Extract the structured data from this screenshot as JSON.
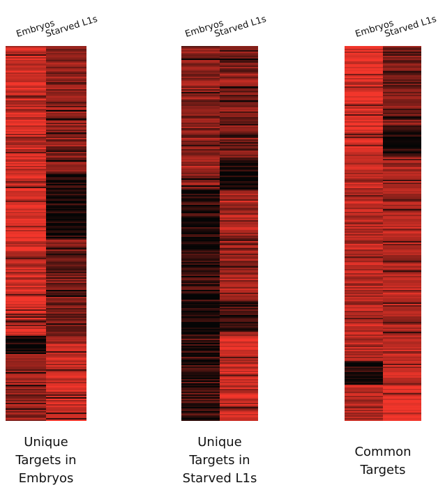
{
  "chart_data": [
    {
      "type": "heatmap",
      "title": "Unique\nTargets in\nEmbryos",
      "columns": [
        "Embryos",
        "Starved L1s"
      ],
      "color_scale": {
        "low": "#050505",
        "high": "#f2362b"
      },
      "segments": [
        {
          "from": 0.0,
          "to": 0.34,
          "Embryos": 0.85,
          "Starved L1s": 0.55
        },
        {
          "from": 0.34,
          "to": 0.51,
          "Embryos": 0.95,
          "Starved L1s": 0.08
        },
        {
          "from": 0.51,
          "to": 0.77,
          "Embryos": 0.85,
          "Starved L1s": 0.45
        },
        {
          "from": 0.77,
          "to": 0.82,
          "Embryos": 0.08,
          "Starved L1s": 0.75
        },
        {
          "from": 0.82,
          "to": 1.0,
          "Embryos": 0.62,
          "Starved L1s": 0.85
        }
      ]
    },
    {
      "type": "heatmap",
      "title": "Unique\nTargets in\nStarved L1s",
      "columns": [
        "Embryos",
        "Starved L1s"
      ],
      "color_scale": {
        "low": "#050505",
        "high": "#f2362b"
      },
      "segments": [
        {
          "from": 0.0,
          "to": 0.3,
          "Embryos": 0.55,
          "Starved L1s": 0.5
        },
        {
          "from": 0.3,
          "to": 0.38,
          "Embryos": 0.62,
          "Starved L1s": 0.12
        },
        {
          "from": 0.38,
          "to": 0.68,
          "Embryos": 0.18,
          "Starved L1s": 0.65
        },
        {
          "from": 0.68,
          "to": 0.76,
          "Embryos": 0.06,
          "Starved L1s": 0.2
        },
        {
          "from": 0.76,
          "to": 1.0,
          "Embryos": 0.22,
          "Starved L1s": 0.8
        }
      ]
    },
    {
      "type": "heatmap",
      "title": "Common\nTargets",
      "columns": [
        "Embryos",
        "Starved L1s"
      ],
      "color_scale": {
        "low": "#050505",
        "high": "#f2362b"
      },
      "segments": [
        {
          "from": 0.0,
          "to": 0.21,
          "Embryos": 0.95,
          "Starved L1s": 0.45
        },
        {
          "from": 0.21,
          "to": 0.29,
          "Embryos": 0.9,
          "Starved L1s": 0.15
        },
        {
          "from": 0.29,
          "to": 0.84,
          "Embryos": 0.72,
          "Starved L1s": 0.7
        },
        {
          "from": 0.84,
          "to": 0.9,
          "Embryos": 0.08,
          "Starved L1s": 0.85
        },
        {
          "from": 0.9,
          "to": 1.0,
          "Embryos": 0.7,
          "Starved L1s": 0.92
        }
      ]
    }
  ]
}
